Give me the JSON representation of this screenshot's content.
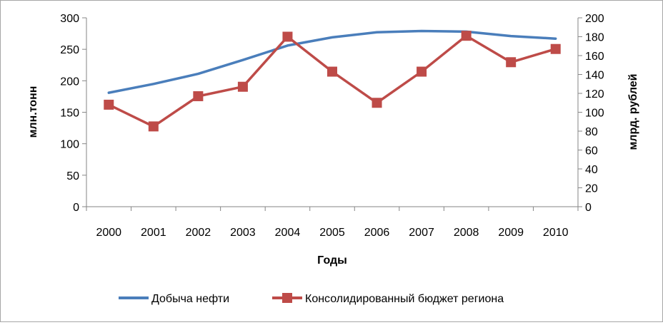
{
  "chart_data": {
    "type": "line",
    "title": "",
    "xlabel": "Годы",
    "ylabel": "млн.тонн",
    "y2label": "млрд. рублей",
    "categories": [
      "2000",
      "2001",
      "2002",
      "2003",
      "2004",
      "2005",
      "2006",
      "2007",
      "2008",
      "2009",
      "2010"
    ],
    "ylim": [
      0,
      300
    ],
    "y2lim": [
      0,
      200
    ],
    "yticks": [
      "0",
      "50",
      "100",
      "150",
      "200",
      "250",
      "300"
    ],
    "y2ticks": [
      "0",
      "20",
      "40",
      "60",
      "80",
      "100",
      "120",
      "140",
      "160",
      "180",
      "200"
    ],
    "grid": false,
    "legend_position": "bottom",
    "series": [
      {
        "name": "Добыча нефти",
        "axis": "left",
        "color": "#4a7ebb",
        "marker": "none",
        "values": [
          181,
          195,
          211,
          233,
          256,
          269,
          277,
          279,
          278,
          271,
          267
        ]
      },
      {
        "name": "Консолидированный бюджет региона",
        "axis": "right",
        "color": "#be4b48",
        "marker": "square",
        "values": [
          108,
          85,
          117,
          127,
          180,
          143,
          110,
          143,
          181,
          153,
          167
        ]
      }
    ]
  }
}
